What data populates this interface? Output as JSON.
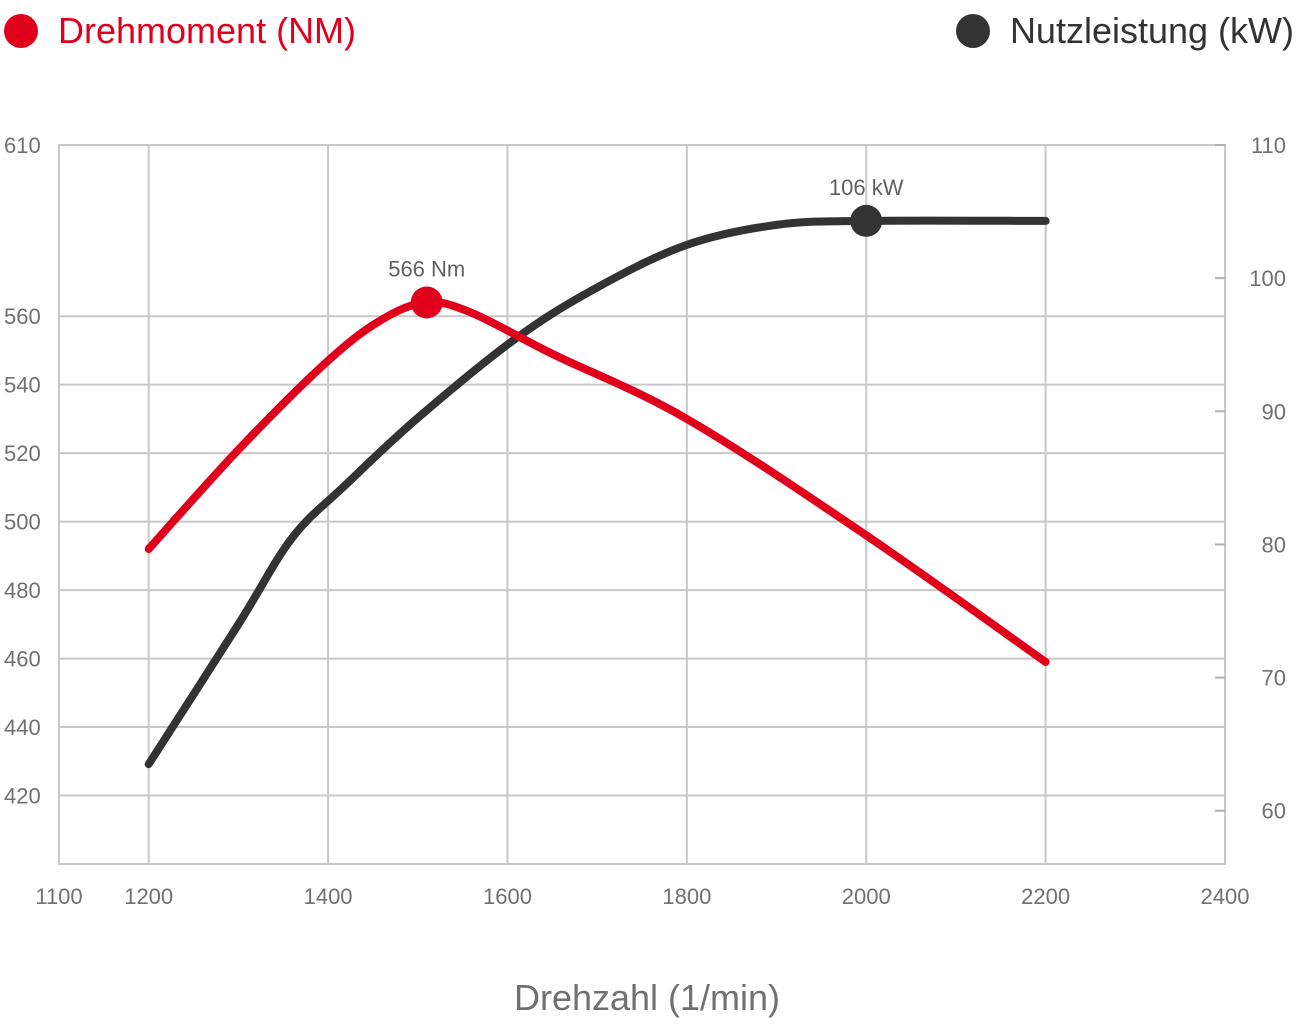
{
  "chart_data": {
    "type": "line",
    "xlabel": "Drehzahl (1/min)",
    "x_axis": {
      "range": [
        1100,
        2400
      ],
      "ticks": [
        "1100",
        "1200",
        "1400",
        "1600",
        "1800",
        "2000",
        "2200",
        "2400"
      ]
    },
    "y_left": {
      "range": [
        400,
        610
      ],
      "ticks": [
        "610",
        "560",
        "540",
        "520",
        "500",
        "480",
        "460",
        "440",
        "420"
      ]
    },
    "y_right": {
      "range": [
        56,
        110
      ],
      "ticks": [
        "110",
        "100",
        "90",
        "80",
        "70",
        "60"
      ]
    },
    "grid": true,
    "legend_position": "top",
    "series": [
      {
        "name": "Drehmoment (NM)",
        "color": "#e0001b",
        "axis": "left",
        "x": [
          1200,
          1300,
          1400,
          1460,
          1510,
          1560,
          1650,
          1800,
          2000,
          2200
        ],
        "y": [
          492,
          521,
          547,
          559,
          564,
          561,
          549,
          530,
          496,
          459
        ]
      },
      {
        "name": "Nutzleistung (kW)",
        "color": "#333333",
        "axis": "right",
        "x": [
          1200,
          1300,
          1360,
          1420,
          1500,
          1610,
          1700,
          1800,
          1900,
          2000,
          2200
        ],
        "y": [
          63.5,
          74,
          80.5,
          84.5,
          89.5,
          95.5,
          99.3,
          102.5,
          104,
          104.3,
          104.3
        ]
      }
    ],
    "annotations": [
      {
        "series": 0,
        "x": 1510,
        "y": 564,
        "text": "566 Nm"
      },
      {
        "series": 1,
        "x": 2000,
        "y": 104.3,
        "text": "106 kW"
      }
    ]
  }
}
